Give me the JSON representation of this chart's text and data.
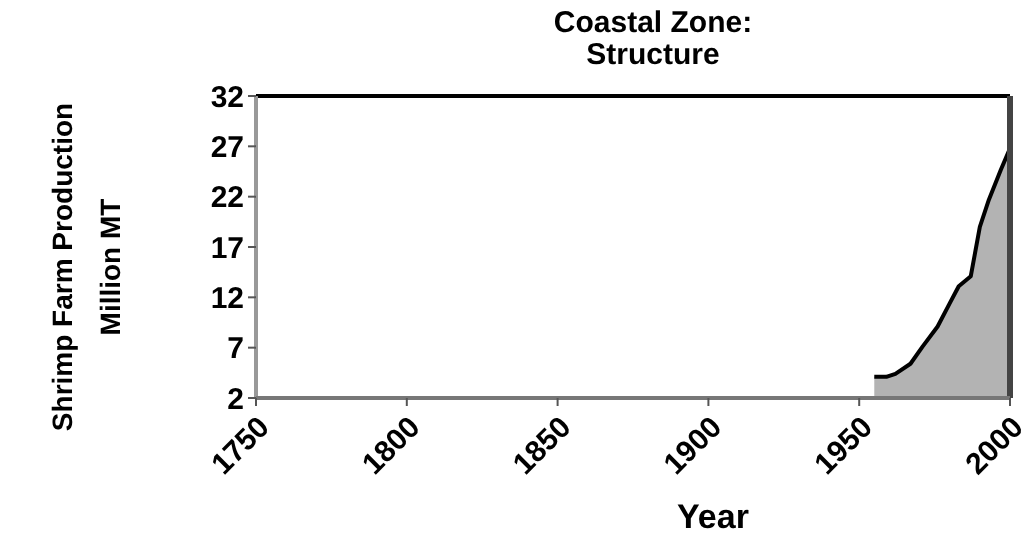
{
  "chart_data": {
    "type": "area",
    "title": "Coastal Zone:\nStructure",
    "xlabel": "Year",
    "ylabel": "Shrimp Farm Production\nMillion MT",
    "x": [
      1955,
      1959,
      1962,
      1967,
      1971,
      1976,
      1980,
      1983,
      1987,
      1990,
      1993,
      1997,
      2000
    ],
    "series": [
      {
        "color": "#b3b3b3",
        "values": [
          4.1,
          4.1,
          4.4,
          5.4,
          7.1,
          9.1,
          11.4,
          13.1,
          14.1,
          19,
          21.7,
          24.7,
          26.8
        ]
      }
    ],
    "xlim": [
      1750,
      2000
    ],
    "xticks": [
      1750,
      1800,
      1850,
      1900,
      1950,
      2000
    ],
    "ylim": [
      2,
      32
    ],
    "yticks": [
      2,
      7,
      12,
      17,
      22,
      27,
      32
    ],
    "grid": false
  }
}
